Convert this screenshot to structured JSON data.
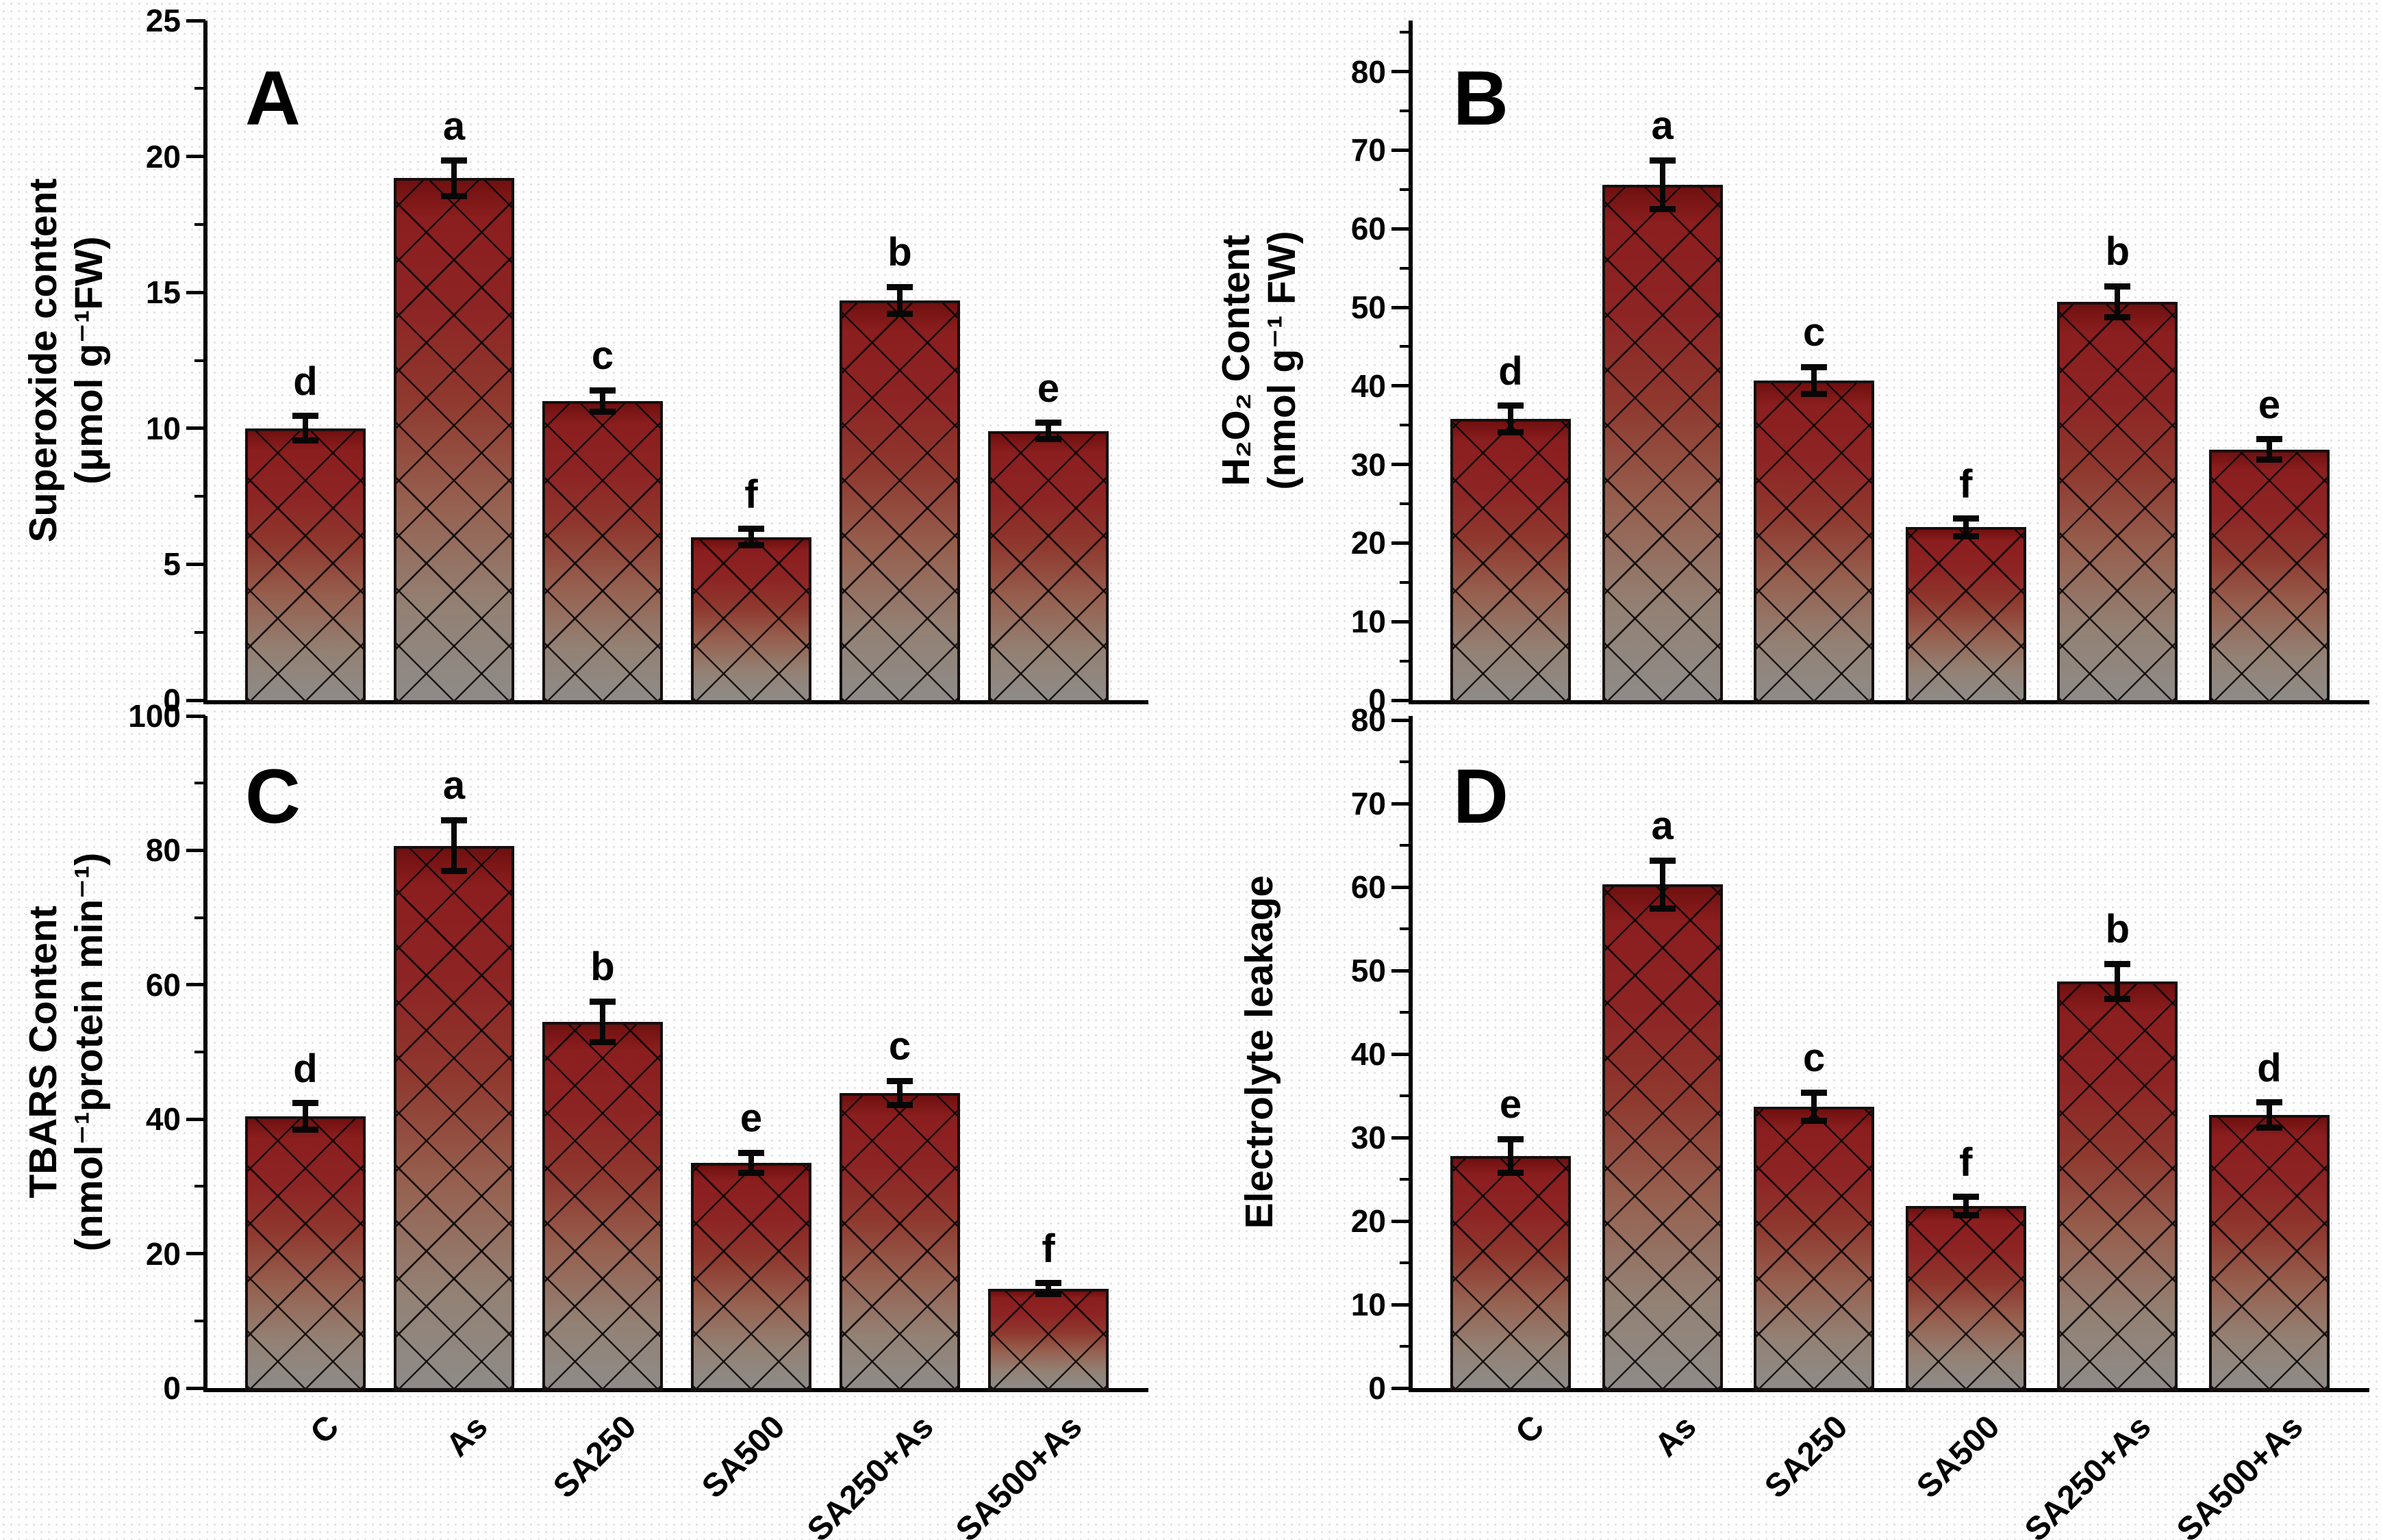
{
  "figure": {
    "background_color": "#ffffff",
    "bar_top_color": "#8b1e1e",
    "bar_bottom_color": "#8e8b88",
    "hatch_color": "#000000",
    "axis_color": "#000000",
    "error_bar_color": "#070707"
  },
  "chart_data": [
    {
      "type": "bar",
      "panel_label": "A",
      "ylabel_lines": [
        "Superoxide content",
        "(μmol g⁻¹FW)"
      ],
      "categories": [
        "C",
        "As",
        "SA250",
        "SA500",
        "SA250+As",
        "SA500+As"
      ],
      "values": [
        10.0,
        19.2,
        11.0,
        6.0,
        14.7,
        9.9
      ],
      "errors": [
        0.45,
        0.65,
        0.4,
        0.3,
        0.5,
        0.3
      ],
      "sig_letters": [
        "d",
        "a",
        "c",
        "f",
        "b",
        "e"
      ],
      "ylim": [
        0,
        25
      ],
      "yticks": [
        0,
        5,
        10,
        15,
        20,
        25
      ],
      "minor_tick_step": 2.5,
      "grid": false,
      "legend": false,
      "show_x_labels": false
    },
    {
      "type": "bar",
      "panel_label": "B",
      "ylabel_lines": [
        "H₂O₂ Content",
        "(nmol g⁻¹ FW)"
      ],
      "categories": [
        "C",
        "As",
        "SA250",
        "SA500",
        "SA250+As",
        "SA500+As"
      ],
      "values": [
        35.8,
        65.6,
        40.7,
        22.0,
        50.7,
        31.9
      ],
      "errors": [
        1.7,
        3.1,
        1.7,
        1.1,
        2.0,
        1.3
      ],
      "sig_letters": [
        "d",
        "a",
        "c",
        "f",
        "b",
        "e"
      ],
      "ylim": [
        0,
        80
      ],
      "yticks": [
        0,
        10,
        20,
        30,
        40,
        50,
        60,
        70,
        80
      ],
      "minor_tick_step": 5,
      "grid": false,
      "legend": false,
      "show_x_labels": false
    },
    {
      "type": "bar",
      "panel_label": "C",
      "ylabel_lines": [
        "TBARS Content",
        "(nmol⁻¹protein min⁻¹)"
      ],
      "categories": [
        "C",
        "As",
        "SA250",
        "SA500",
        "SA250+As",
        "SA500+As"
      ],
      "values": [
        40.4,
        80.7,
        54.5,
        33.5,
        43.9,
        14.8
      ],
      "errors": [
        2.0,
        3.8,
        3.0,
        1.5,
        1.8,
        0.8
      ],
      "sig_letters": [
        "d",
        "a",
        "b",
        "e",
        "c",
        "f"
      ],
      "ylim": [
        0,
        100
      ],
      "yticks": [
        0,
        20,
        40,
        60,
        80,
        100
      ],
      "minor_tick_step": 10,
      "grid": false,
      "legend": false,
      "show_x_labels": true
    },
    {
      "type": "bar",
      "panel_label": "D",
      "ylabel_lines": [
        "Electrolyte leakage"
      ],
      "categories": [
        "C",
        "As",
        "SA250",
        "SA500",
        "SA250+As",
        "SA500+As"
      ],
      "values": [
        27.8,
        60.3,
        33.7,
        21.8,
        48.7,
        32.7
      ],
      "errors": [
        2.0,
        2.9,
        1.7,
        1.1,
        2.1,
        1.5
      ],
      "sig_letters": [
        "e",
        "a",
        "c",
        "f",
        "b",
        "d"
      ],
      "ylim": [
        0,
        80
      ],
      "yticks": [
        0,
        10,
        20,
        30,
        40,
        50,
        60,
        70,
        80
      ],
      "minor_tick_step": 5,
      "grid": false,
      "legend": false,
      "show_x_labels": true
    }
  ]
}
